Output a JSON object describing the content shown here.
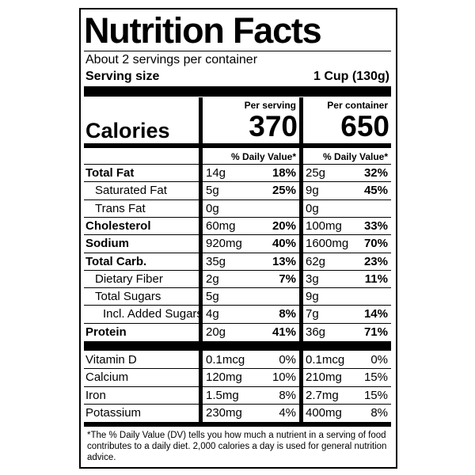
{
  "title": "Nutrition Facts",
  "servings": "About 2 servings per container",
  "serving_size": {
    "label": "Serving size",
    "value": "1 Cup (130g)"
  },
  "calories_label": "Calories",
  "dv_header": "% Daily Value*",
  "columns": [
    {
      "header": "Per serving",
      "calories": "370"
    },
    {
      "header": "Per container",
      "calories": "650"
    }
  ],
  "nutrients": [
    {
      "name": "Total Fat",
      "values": [
        {
          "amount": "14g",
          "dv": "18%"
        },
        {
          "amount": "25g",
          "dv": "32%"
        }
      ]
    },
    {
      "name": "Saturated Fat",
      "values": [
        {
          "amount": "5g",
          "dv": "25%"
        },
        {
          "amount": "9g",
          "dv": "45%"
        }
      ]
    },
    {
      "name": "Trans Fat",
      "values": [
        {
          "amount": "0g"
        },
        {
          "amount": "0g"
        }
      ]
    },
    {
      "name": "Cholesterol",
      "values": [
        {
          "amount": "60mg",
          "dv": "20%"
        },
        {
          "amount": "100mg",
          "dv": "33%"
        }
      ]
    },
    {
      "name": "Sodium",
      "values": [
        {
          "amount": "920mg",
          "dv": "40%"
        },
        {
          "amount": "1600mg",
          "dv": "70%"
        }
      ]
    },
    {
      "name": "Total Carb.",
      "values": [
        {
          "amount": "35g",
          "dv": "13%"
        },
        {
          "amount": "62g",
          "dv": "23%"
        }
      ]
    },
    {
      "name": "Dietary Fiber",
      "values": [
        {
          "amount": "2g",
          "dv": "7%"
        },
        {
          "amount": "3g",
          "dv": "11%"
        }
      ]
    },
    {
      "name": "Total Sugars",
      "values": [
        {
          "amount": "5g"
        },
        {
          "amount": "9g"
        }
      ]
    },
    {
      "name": "Incl. Added Sugars",
      "values": [
        {
          "amount": "4g",
          "dv": "8%"
        },
        {
          "amount": "7g",
          "dv": "14%"
        }
      ]
    },
    {
      "name": "Protein",
      "values": [
        {
          "amount": "20g",
          "dv": "41%"
        },
        {
          "amount": "36g",
          "dv": "71%"
        }
      ]
    }
  ],
  "vitamins": [
    {
      "name": "Vitamin D",
      "values": [
        {
          "amount": "0.1mcg",
          "dv": "0%"
        },
        {
          "amount": "0.1mcg",
          "dv": "0%"
        }
      ]
    },
    {
      "name": "Calcium",
      "values": [
        {
          "amount": "120mg",
          "dv": "10%"
        },
        {
          "amount": "210mg",
          "dv": "15%"
        }
      ]
    },
    {
      "name": "Iron",
      "values": [
        {
          "amount": "1.5mg",
          "dv": "8%"
        },
        {
          "amount": "2.7mg",
          "dv": "15%"
        }
      ]
    },
    {
      "name": "Potassium",
      "values": [
        {
          "amount": "230mg",
          "dv": "4%"
        },
        {
          "amount": "400mg",
          "dv": "8%"
        }
      ]
    }
  ],
  "footnote": "*The % Daily Value (DV) tells you how much a nutrient in a serving of food contributes to a daily diet. 2,000 calories a day is used for general nutrition advice."
}
